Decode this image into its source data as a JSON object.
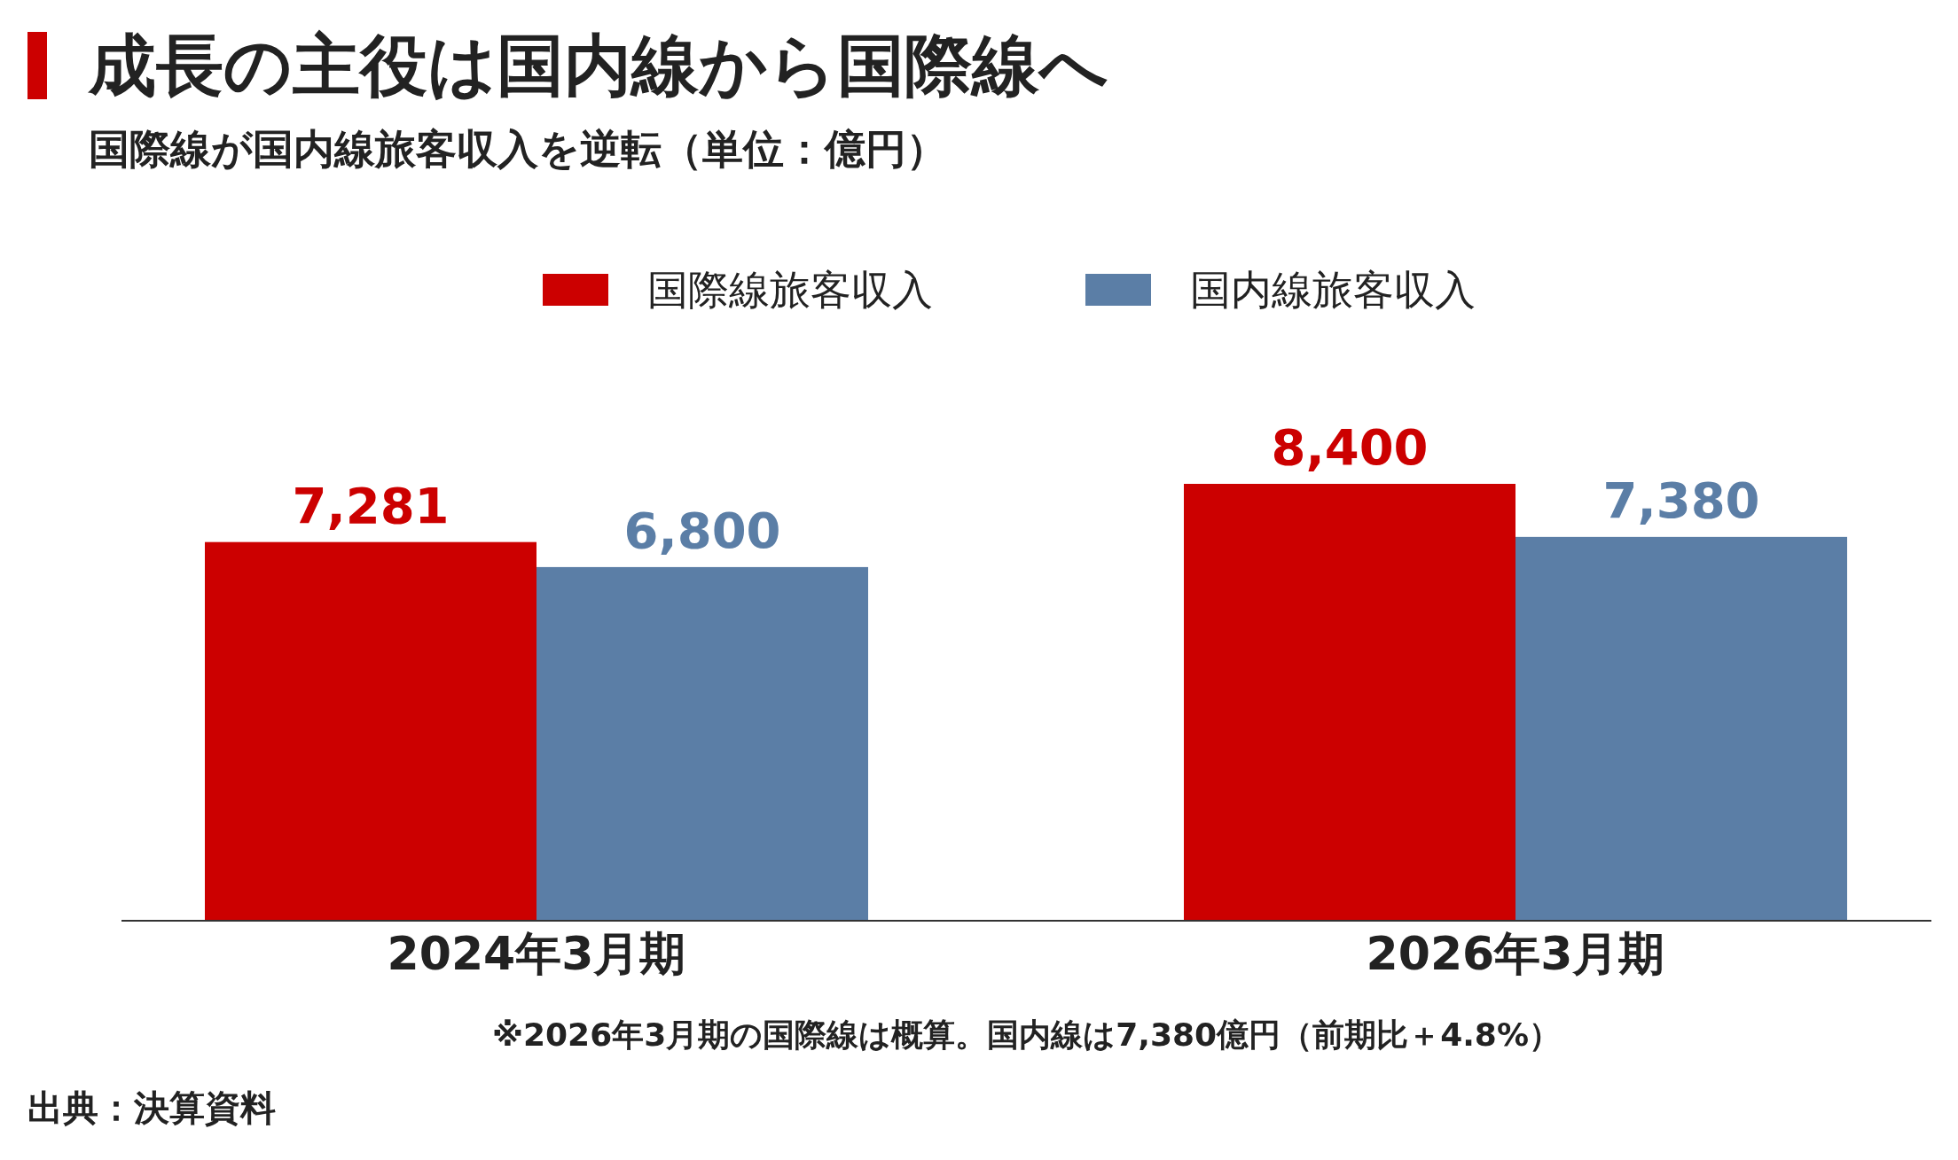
{
  "chart_data": {
    "type": "bar",
    "title": "成長の主役は国内線から国際線へ",
    "subtitle": "国際線が国内線旅客収入を逆転（単位：億円）",
    "categories": [
      "2024年3月期",
      "2026年3月期"
    ],
    "series": [
      {
        "name": "国際線旅客収入",
        "color": "#cc0000",
        "values": [
          7281,
          8400
        ],
        "value_labels": [
          "7,281",
          "8,400"
        ]
      },
      {
        "name": "国内線旅客収入",
        "color": "#5b7ea6",
        "values": [
          6800,
          7380
        ],
        "value_labels": [
          "6,800",
          "7,380"
        ]
      }
    ],
    "legend": "top",
    "annotations": [
      "※2026年3月期の国際線は概算。国内線は7,380億円（前期比＋4.8%）",
      "出典：決算資料"
    ]
  }
}
